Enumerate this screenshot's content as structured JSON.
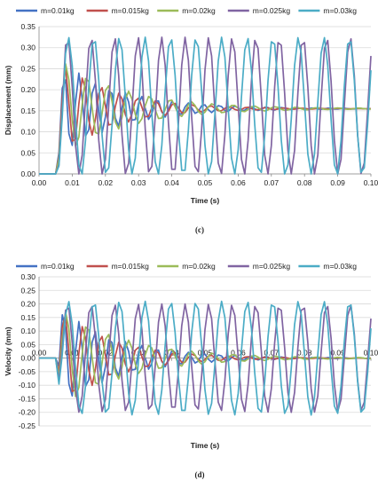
{
  "chart_data": [
    {
      "type": "line",
      "caption": "(c)",
      "xlabel": "Time (s)",
      "ylabel": "Displacement  (mm)",
      "xlim": [
        0,
        0.1
      ],
      "ylim": [
        0,
        0.35
      ],
      "xticks": [
        "0.00",
        "0.01",
        "0.02",
        "0.03",
        "0.04",
        "0.05",
        "0.06",
        "0.07",
        "0.08",
        "0.09",
        "0.10"
      ],
      "yticks": [
        "0.00",
        "0.05",
        "0.10",
        "0.15",
        "0.20",
        "0.25",
        "0.30",
        "0.35"
      ],
      "grid": true,
      "legend_position": "top",
      "signal": {
        "onset": 0.005,
        "rise_end": 0.0075,
        "dt": 0.001
      },
      "series": [
        {
          "name": "m=0.01kg",
          "color": "#4472c4",
          "mean": 0.155,
          "amplitude": 0.125,
          "period": 0.0047,
          "decay": 0.018
        },
        {
          "name": "m=0.015kg",
          "color": "#c0504d",
          "mean": 0.155,
          "amplitude": 0.125,
          "period": 0.0055,
          "decay": 0.016
        },
        {
          "name": "m=0.02kg",
          "color": "#9bbb59",
          "mean": 0.155,
          "amplitude": 0.125,
          "period": 0.0063,
          "decay": 0.02
        },
        {
          "name": "m=0.025kg",
          "color": "#8064a2",
          "mean": 0.16,
          "amplitude": 0.165,
          "period": 0.0071,
          "decay": 100
        },
        {
          "name": "m=0.03kg",
          "color": "#4bacc6",
          "mean": 0.16,
          "amplitude": 0.165,
          "period": 0.0077,
          "decay": 100
        }
      ]
    },
    {
      "type": "line",
      "caption": "(d)",
      "xlabel": "Time (s)",
      "ylabel": "Velocity (mm)",
      "xlim": [
        0,
        0.1
      ],
      "ylim": [
        -0.25,
        0.3
      ],
      "xticks": [
        "0.00",
        "0.01",
        "0.02",
        "0.03",
        "0.04",
        "0.05",
        "0.06",
        "0.07",
        "0.08",
        "0.09",
        "0.10"
      ],
      "yticks": [
        "-0.25",
        "-0.20",
        "-0.15",
        "-0.10",
        "-0.05",
        "0.00",
        "0.05",
        "0.10",
        "0.15",
        "0.20",
        "0.25",
        "0.30"
      ],
      "grid": true,
      "legend_position": "top",
      "signal": {
        "onset": 0.005,
        "rise_end": 0.0065,
        "dt": 0.001
      },
      "series": [
        {
          "name": "m=0.01kg",
          "color": "#4472c4",
          "mean": 0.0,
          "amplitude": 0.2,
          "period": 0.0047,
          "decay": 0.018
        },
        {
          "name": "m=0.015kg",
          "color": "#c0504d",
          "mean": 0.0,
          "amplitude": 0.2,
          "period": 0.0055,
          "decay": 0.016
        },
        {
          "name": "m=0.02kg",
          "color": "#9bbb59",
          "mean": 0.0,
          "amplitude": 0.2,
          "period": 0.0063,
          "decay": 0.02
        },
        {
          "name": "m=0.025kg",
          "color": "#8064a2",
          "mean": 0.0,
          "amplitude": 0.2,
          "period": 0.0071,
          "decay": 100
        },
        {
          "name": "m=0.03kg",
          "color": "#4bacc6",
          "mean": 0.0,
          "amplitude": 0.21,
          "period": 0.0077,
          "decay": 100
        }
      ]
    }
  ]
}
